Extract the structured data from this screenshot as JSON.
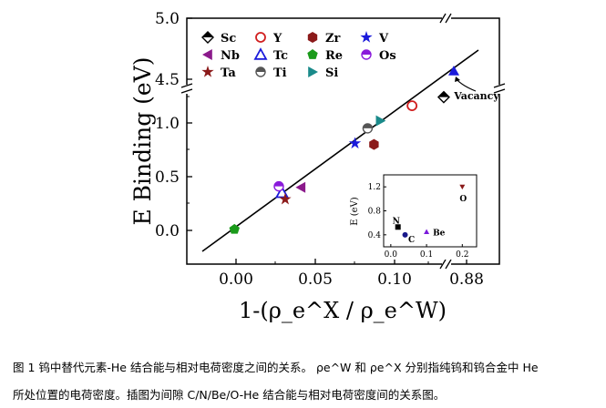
{
  "chart_data": {
    "type": "scatter",
    "title": "",
    "ylabel": "E Binding (eV)",
    "xlabel": "1-(ρ_e^X / ρ_e^W)",
    "xlim": [
      -0.03,
      0.16
    ],
    "x_break": {
      "after": 0.14,
      "resumes_at": 0.88
    },
    "ylim": [
      -0.2,
      5.0
    ],
    "y_break": {
      "after": 1.3,
      "resumes_at": 4.5
    },
    "x_ticks": [
      "0.00",
      "0.05",
      "0.10",
      "0.88"
    ],
    "y_ticks": [
      "0.0",
      "0.5",
      "1.0",
      "4.5",
      "5.0"
    ],
    "series": [
      {
        "name": "Sc",
        "marker": "half-diamond",
        "color": "#000000",
        "x": 0.131,
        "y": 1.24
      },
      {
        "name": "Y",
        "marker": "circle-open",
        "color": "#d11f1f",
        "x": 0.111,
        "y": 1.16
      },
      {
        "name": "Zr",
        "marker": "hexagon",
        "color": "#8b1a1a",
        "x": 0.087,
        "y": 0.8
      },
      {
        "name": "V",
        "marker": "star",
        "color": "#1a1adb",
        "x": 0.075,
        "y": 0.81
      },
      {
        "name": "Nb",
        "marker": "triangle-left",
        "color": "#8b1a8b",
        "x": 0.041,
        "y": 0.4
      },
      {
        "name": "Tc",
        "marker": "triangle-open",
        "color": "#1a1adb",
        "x": 0.029,
        "y": 0.35
      },
      {
        "name": "Re",
        "marker": "pentagon",
        "color": "#1a9a1a",
        "x": -0.001,
        "y": 0.01
      },
      {
        "name": "Os",
        "marker": "half-circle",
        "color": "#8a1adb",
        "x": 0.027,
        "y": 0.41
      },
      {
        "name": "Ta",
        "marker": "star",
        "color": "#8b1a1a",
        "x": 0.031,
        "y": 0.29
      },
      {
        "name": "Ti",
        "marker": "half-circle",
        "color": "#555555",
        "x": 0.083,
        "y": 0.95
      },
      {
        "name": "Si",
        "marker": "triangle-right",
        "color": "#1a8a8a",
        "x": 0.091,
        "y": 1.02
      },
      {
        "name": "Vacancy",
        "marker": "triangle",
        "color": "#1a1adb",
        "x": 0.145,
        "y": 4.6
      }
    ],
    "fit_line": {
      "x": [
        -0.022,
        0.155
      ],
      "y": [
        -0.18,
        4.72
      ]
    },
    "annotation": "Vacancy",
    "legend": [
      "Sc",
      "Y",
      "Zr",
      "V",
      "Nb",
      "Tc",
      "Re",
      "Os",
      "Ta",
      "Ti",
      "Si"
    ],
    "inset": {
      "type": "scatter",
      "ylabel": "E (eV)",
      "x_ticks": [
        "0.0",
        "0.1",
        "0.2"
      ],
      "y_ticks": [
        "0.4",
        "0.8",
        "1.2"
      ],
      "xlim": [
        -0.02,
        0.24
      ],
      "ylim": [
        0.2,
        1.4
      ],
      "points": [
        {
          "name": "N",
          "x": 0.02,
          "y": 0.53,
          "color": "#000000",
          "marker": "square"
        },
        {
          "name": "C",
          "x": 0.04,
          "y": 0.4,
          "color": "#1a1a8b",
          "marker": "circle"
        },
        {
          "name": "Be",
          "x": 0.1,
          "y": 0.45,
          "color": "#7a1adb",
          "marker": "triangle"
        },
        {
          "name": "O",
          "x": 0.2,
          "y": 1.2,
          "color": "#8b1a1a",
          "marker": "triangle-down"
        }
      ]
    }
  },
  "caption": {
    "line1": "图 1  钨中替代元素-He 结合能与相对电荷密度之间的关系。 ρe^W 和 ρe^X 分别指纯钨和钨合金中 He",
    "line2": "所处位置的电荷密度。插图为间隙 C/N/Be/O-He 结合能与相对电荷密度间的关系图。"
  }
}
